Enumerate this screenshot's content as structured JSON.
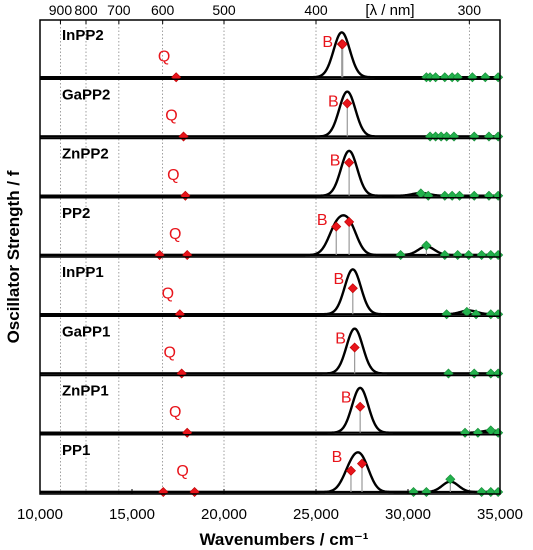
{
  "chart_data": {
    "type": "line",
    "xlabel": "Wavenumbers / cm⁻¹",
    "ylabel": "Oscillator Strength / f",
    "xlim": [
      10000,
      35000
    ],
    "x_ticks": [
      {
        "value": 10000,
        "label": "10,000"
      },
      {
        "value": 15000,
        "label": "15,000"
      },
      {
        "value": 20000,
        "label": "20,000"
      },
      {
        "value": 25000,
        "label": "25,000"
      },
      {
        "value": 30000,
        "label": "30,000"
      },
      {
        "value": 35000,
        "label": "35,000"
      }
    ],
    "top_axis_label": "[λ / nm]",
    "top_ticks": [
      {
        "value": 900,
        "label": "900"
      },
      {
        "value": 800,
        "label": "800"
      },
      {
        "value": 700,
        "label": "700"
      },
      {
        "value": 600,
        "label": "600"
      },
      {
        "value": 500,
        "label": "500"
      },
      {
        "value": 400,
        "label": "400"
      },
      {
        "value": 300,
        "label": "300"
      }
    ],
    "top_extra_lines_nm": [
      1000
    ],
    "grid": "vertical dotted lines at wavelength ticks",
    "colors": {
      "q_b_bands": "#e8141b",
      "high_energy": "#22b14c",
      "curve": "#000000",
      "label_text": "#e8141b"
    },
    "panels": [
      {
        "name": "InPP2",
        "q_label": "Q",
        "b_label": "B",
        "q_bands": [
          [
            17400,
            0.0
          ]
        ],
        "b_bands": [
          [
            26400,
            0.7
          ],
          [
            26450,
            0.7
          ]
        ],
        "high_bands": [
          [
            31000,
            0.0
          ],
          [
            31200,
            0.0
          ],
          [
            31500,
            0.0
          ],
          [
            32000,
            0.0
          ],
          [
            32400,
            0.0
          ],
          [
            32700,
            0.0
          ],
          [
            33500,
            0.0
          ],
          [
            34200,
            0.0
          ],
          [
            34900,
            0.0
          ]
        ],
        "curve_peaks": [
          [
            26400,
            0.95
          ]
        ]
      },
      {
        "name": "GaPP2",
        "q_label": "Q",
        "b_label": "B",
        "q_bands": [
          [
            17800,
            0.0
          ]
        ],
        "b_bands": [
          [
            26700,
            0.7
          ]
        ],
        "high_bands": [
          [
            31200,
            0.0
          ],
          [
            31500,
            0.0
          ],
          [
            31800,
            0.0
          ],
          [
            32100,
            0.0
          ],
          [
            32500,
            0.0
          ],
          [
            33600,
            0.0
          ],
          [
            34400,
            0.0
          ],
          [
            34900,
            0.0
          ]
        ],
        "curve_peaks": [
          [
            26700,
            0.95
          ]
        ]
      },
      {
        "name": "ZnPP2",
        "q_label": "Q",
        "b_label": "B",
        "q_bands": [
          [
            17900,
            0.0
          ]
        ],
        "b_bands": [
          [
            26800,
            0.7
          ]
        ],
        "high_bands": [
          [
            30700,
            0.05
          ],
          [
            31100,
            0.0
          ],
          [
            32000,
            0.0
          ],
          [
            32400,
            0.0
          ],
          [
            32800,
            0.0
          ],
          [
            33600,
            0.0
          ],
          [
            34400,
            0.0
          ],
          [
            34900,
            0.0
          ]
        ],
        "curve_peaks": [
          [
            26800,
            0.95
          ],
          [
            30700,
            0.06
          ]
        ]
      },
      {
        "name": "PP2",
        "q_label": "Q",
        "b_label": "B",
        "q_bands": [
          [
            16500,
            0.0
          ],
          [
            18000,
            0.0
          ]
        ],
        "b_bands": [
          [
            26100,
            0.6
          ],
          [
            26800,
            0.7
          ]
        ],
        "high_bands": [
          [
            29600,
            0.0
          ],
          [
            31000,
            0.2
          ],
          [
            32000,
            0.0
          ],
          [
            32700,
            0.0
          ],
          [
            33300,
            0.0
          ],
          [
            34000,
            0.0
          ],
          [
            34500,
            0.0
          ],
          [
            34900,
            0.0
          ]
        ],
        "curve_peaks": [
          [
            26100,
            0.55
          ],
          [
            26800,
            0.6
          ],
          [
            31000,
            0.18
          ]
        ]
      },
      {
        "name": "InPP1",
        "q_label": "Q",
        "b_label": "B",
        "q_bands": [
          [
            17600,
            0.0
          ]
        ],
        "b_bands": [
          [
            27000,
            0.55
          ]
        ],
        "high_bands": [
          [
            32100,
            0.0
          ],
          [
            33200,
            0.05
          ],
          [
            33700,
            0.0
          ],
          [
            34500,
            0.0
          ],
          [
            34900,
            0.0
          ]
        ],
        "curve_peaks": [
          [
            27000,
            0.95
          ],
          [
            33300,
            0.08
          ]
        ]
      },
      {
        "name": "GaPP1",
        "q_label": "Q",
        "b_label": "B",
        "q_bands": [
          [
            17700,
            0.0
          ]
        ],
        "b_bands": [
          [
            27100,
            0.55
          ]
        ],
        "high_bands": [
          [
            32200,
            0.0
          ],
          [
            33600,
            0.0
          ],
          [
            34500,
            0.0
          ],
          [
            34900,
            0.0
          ]
        ],
        "curve_peaks": [
          [
            27100,
            0.95
          ]
        ]
      },
      {
        "name": "ZnPP1",
        "q_label": "Q",
        "b_label": "B",
        "q_bands": [
          [
            18000,
            0.0
          ]
        ],
        "b_bands": [
          [
            27400,
            0.55
          ]
        ],
        "high_bands": [
          [
            33100,
            0.0
          ],
          [
            33800,
            0.0
          ],
          [
            34500,
            0.05
          ],
          [
            34900,
            0.0
          ]
        ],
        "curve_peaks": [
          [
            27400,
            0.95
          ],
          [
            34500,
            0.05
          ]
        ]
      },
      {
        "name": "PP1",
        "q_label": "Q",
        "b_label": "B",
        "q_bands": [
          [
            16700,
            0.0
          ],
          [
            18400,
            0.0
          ]
        ],
        "b_bands": [
          [
            26900,
            0.45
          ],
          [
            27500,
            0.6
          ]
        ],
        "high_bands": [
          [
            30300,
            0.0
          ],
          [
            31000,
            0.0
          ],
          [
            32300,
            0.27
          ],
          [
            34000,
            0.0
          ],
          [
            34500,
            0.0
          ],
          [
            34900,
            0.0
          ]
        ],
        "curve_peaks": [
          [
            26900,
            0.45
          ],
          [
            27500,
            0.6
          ],
          [
            32300,
            0.22
          ]
        ]
      }
    ]
  }
}
